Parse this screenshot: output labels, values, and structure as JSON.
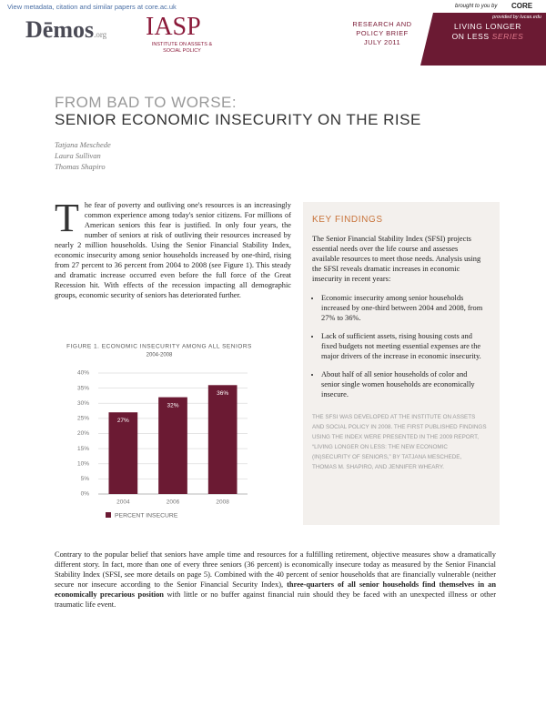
{
  "top_bar": {
    "link": "View metadata, citation and similar papers at core.ac.uk",
    "brought": "brought to you by",
    "core": "CORE",
    "provided": "provided by Iucas.edu"
  },
  "header": {
    "demos": "Dēmos",
    "demos_suffix": ".org",
    "iasp": "IASP",
    "iasp_name": "INSTITUTE ON ASSETS & SOCIAL POLICY",
    "brief": [
      "RESEARCH AND",
      "POLICY BRIEF",
      "JULY 2011"
    ],
    "series_line1": "LIVING LONGER",
    "series_line2": "ON LESS",
    "series_word": "SERIES"
  },
  "title": {
    "kicker": "FROM BAD TO WORSE:",
    "main": "SENIOR ECONOMIC INSECURITY ON THE RISE"
  },
  "authors": [
    "Tatjana Meschede",
    "Laura Sullivan",
    "Thomas Shapiro"
  ],
  "intro": {
    "dropcap": "T",
    "text": "he fear of poverty and outliving one's resources is an increasingly common experience among today's senior citizens. For millions of American seniors this fear is justified. In only four years, the number of seniors at risk of outliving their resources increased by nearly 2 million households. Using the Senior Financial Stability Index, economic insecurity among senior households increased by one-third, rising from 27 percent to 36 percent from 2004 to 2008 (see Figure 1). This steady and dramatic increase occurred even before the full force of the Great Recession hit. With effects of the recession impacting all demographic groups, economic security of seniors has deteriorated further."
  },
  "chart_data": {
    "type": "bar",
    "title": "FIGURE 1. ECONOMIC INSECURITY AMONG ALL SENIORS",
    "subtitle": "2004-2008",
    "categories": [
      "2004",
      "2006",
      "2008"
    ],
    "series": [
      {
        "name": "PERCENT INSECURE",
        "color": "#6b1a33",
        "values": [
          27,
          32,
          36
        ],
        "value_labels": [
          "27%",
          "32%",
          "36%"
        ]
      }
    ],
    "ylim": [
      0,
      40
    ],
    "yticks": [
      {
        "value": 0,
        "label": "0%"
      },
      {
        "value": 5,
        "label": "5%"
      },
      {
        "value": 10,
        "label": "10%"
      },
      {
        "value": 15,
        "label": "15%"
      },
      {
        "value": 20,
        "label": "20%"
      },
      {
        "value": 25,
        "label": "25%"
      },
      {
        "value": 30,
        "label": "30%"
      },
      {
        "value": 35,
        "label": "35%"
      },
      {
        "value": 40,
        "label": "40%"
      }
    ],
    "grid": true
  },
  "key_findings": {
    "heading": "KEY FINDINGS",
    "intro": "The Senior Financial Stability Index (SFSI) projects essential needs over the life course and assesses available resources to meet those needs. Analysis using the SFSI reveals dramatic increases in economic insecurity in recent years:",
    "bullets": [
      "Economic insecurity among senior households increased by one-third between 2004 and 2008, from 27% to 36%.",
      "Lack of sufficient assets, rising housing costs and fixed budgets not meeting essential expenses are the major drivers of the increase in economic insecurity.",
      "About half of all senior households of color and senior single women households are economically insecure."
    ],
    "note": "THE SFSI WAS DEVELOPED AT THE INSTITUTE ON ASSETS AND SOCIAL POLICY IN 2008. THE FIRST PUBLISHED FINDINGS USING THE INDEX WERE PRESENTED IN THE 2009 REPORT, “LIVING LONGER ON LESS: THE NEW ECONOMIC (IN)SECURITY OF SENIORS,” BY TATJANA MESCHEDE, THOMAS M. SHAPIRO, AND JENNIFER WHEARY."
  },
  "closing": [
    {
      "text": "Contrary to the popular belief that seniors have ample time and resources for a fulfilling retirement, objective measures show a dramatically different story. In fact, more than one of every three seniors (36 percent) is economically insecure today as measured by the Senior Financial Stability Index (SFSI, see more details on page 5). Combined with the 40 percent of senior households that are financially vulnerable (neither secure nor insecure according to the Senior Financial Security Index), ",
      "bold": false
    },
    {
      "text": "three-quarters of all senior households find themselves in an economically precarious position",
      "bold": true
    },
    {
      "text": " with little or no buffer against financial ruin should they be faced with an unexpected illness or other traumatic life event.",
      "bold": false
    }
  ]
}
